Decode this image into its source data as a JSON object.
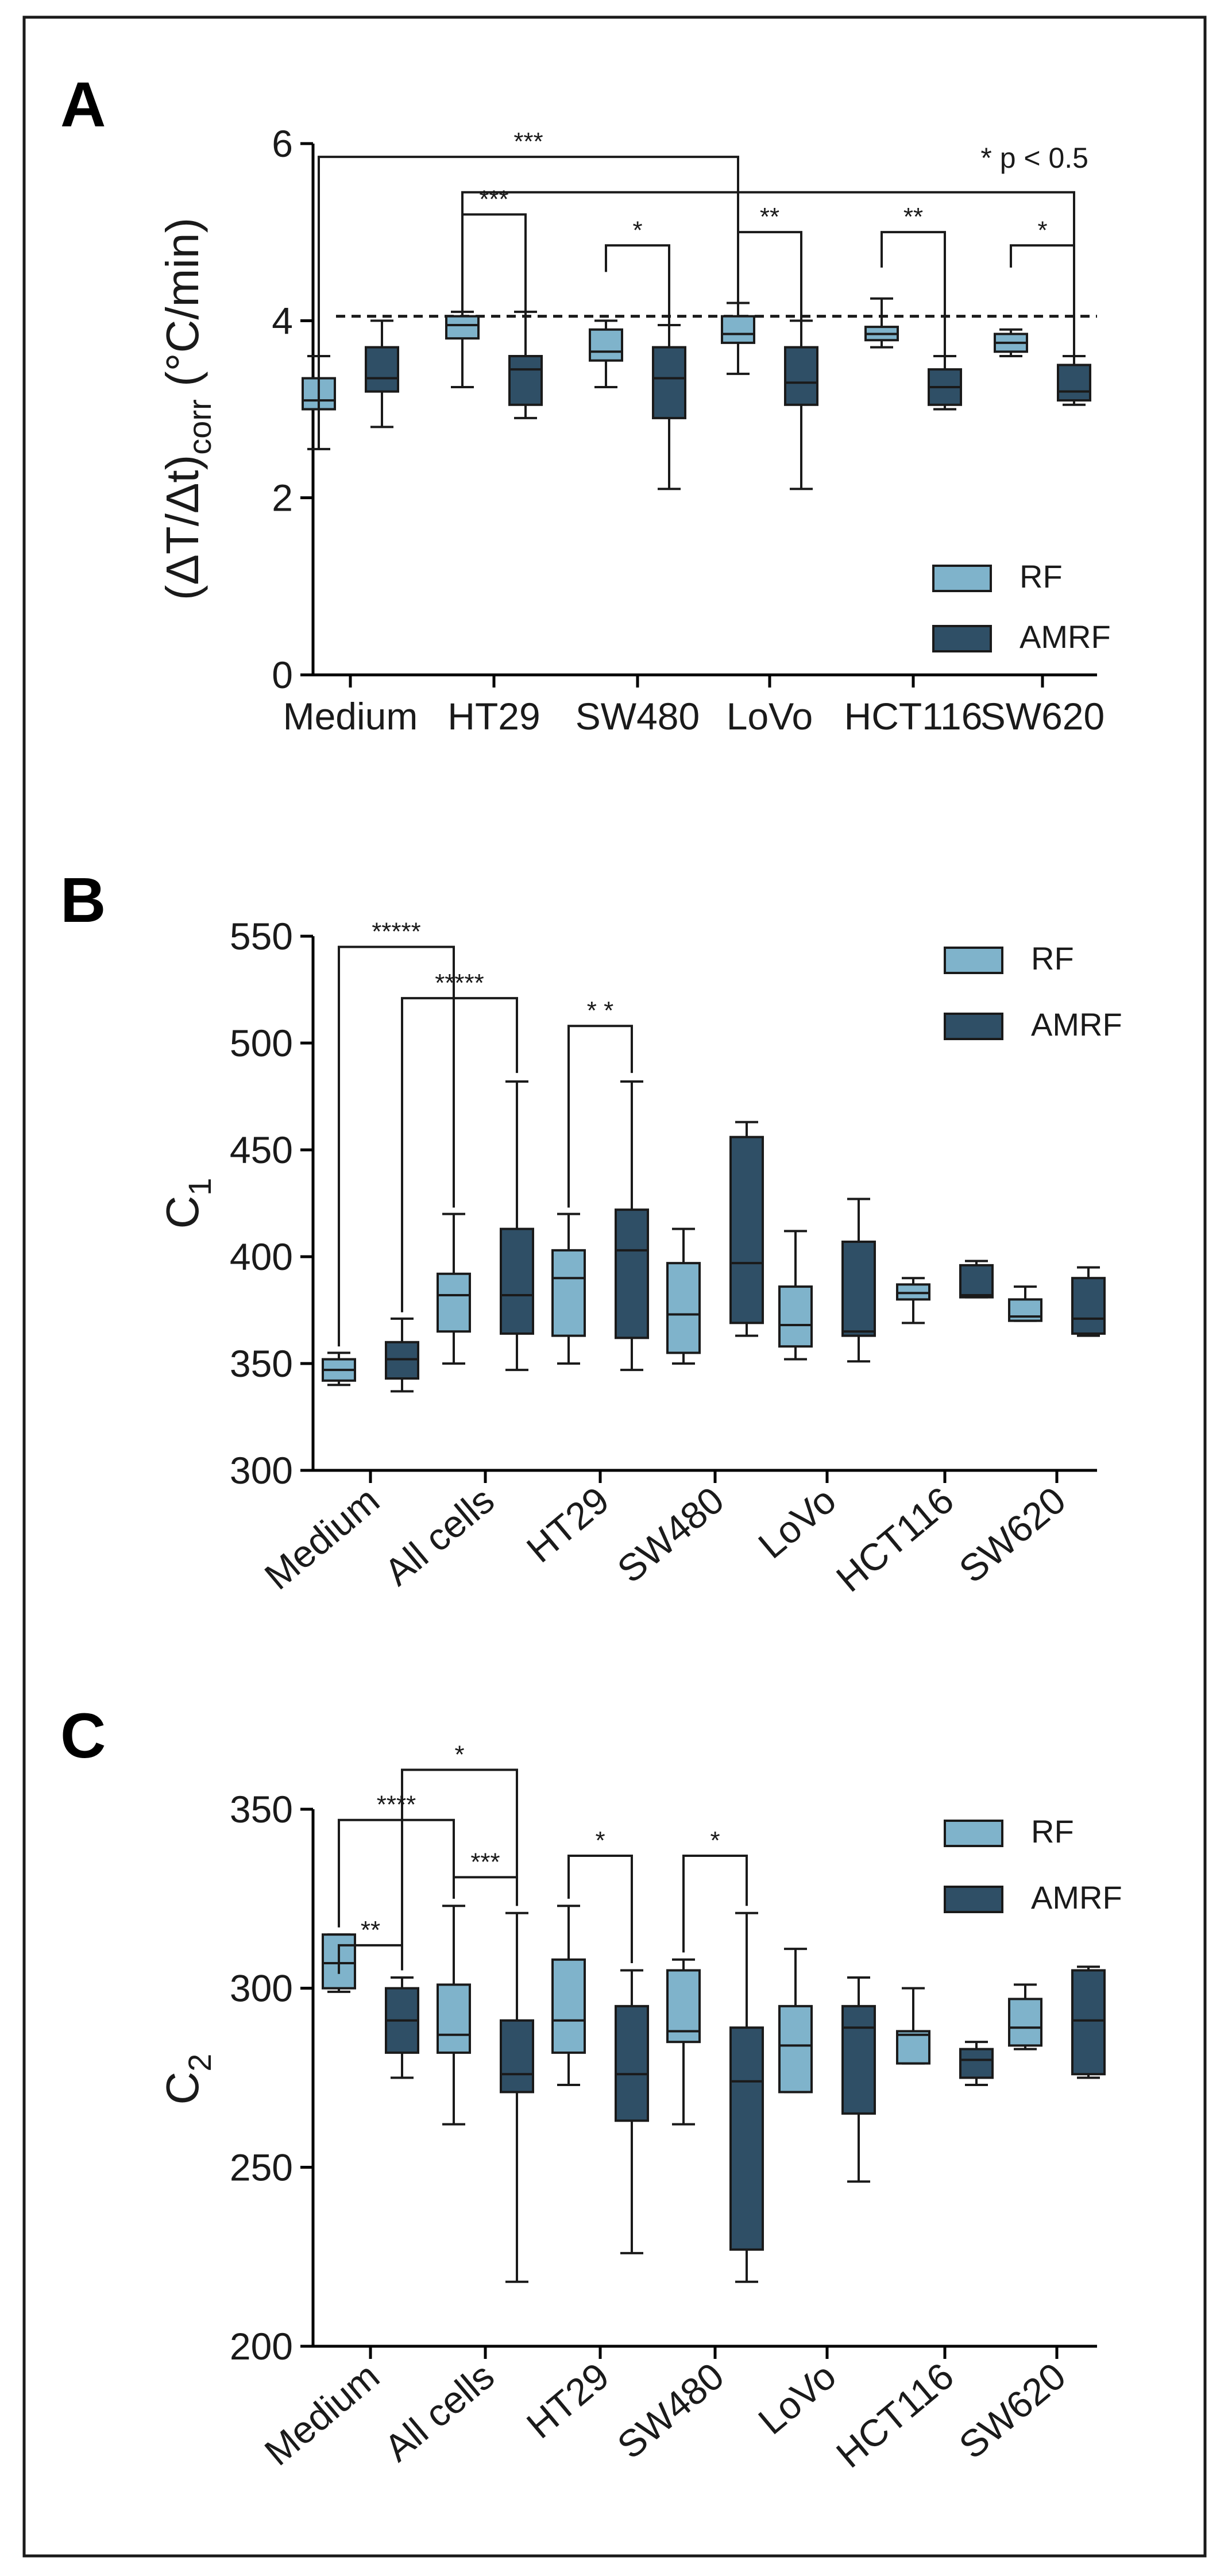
{
  "colors": {
    "RF": "#7fb3cb",
    "AMRF": "#2f4f66"
  },
  "chart_data": [
    {
      "panel": "A",
      "type": "box",
      "ylabel_main": "(ΔT/Δt)",
      "ylabel_sub": "corr",
      "ylabel_unit": " (°C/min)",
      "ylim": [
        0,
        6
      ],
      "yticks": [
        0,
        2,
        4,
        6
      ],
      "categories": [
        "Medium",
        "HT29",
        "SW480",
        "LoVo",
        "HCT116",
        "SW620"
      ],
      "legend": [
        "RF",
        "AMRF"
      ],
      "legend_position": "bottom-right",
      "reference_line": 4.05,
      "note": "* p < 0.5",
      "series": [
        {
          "name": "RF",
          "boxes": [
            {
              "min": 2.55,
              "q1": 3.0,
              "median": 3.1,
              "q3": 3.35,
              "max": 3.6
            },
            {
              "min": 3.25,
              "q1": 3.8,
              "median": 3.95,
              "q3": 4.05,
              "max": 4.1
            },
            {
              "min": 3.25,
              "q1": 3.55,
              "median": 3.65,
              "q3": 3.9,
              "max": 4.0
            },
            {
              "min": 3.4,
              "q1": 3.75,
              "median": 3.85,
              "q3": 4.05,
              "max": 4.2
            },
            {
              "min": 3.7,
              "q1": 3.78,
              "median": 3.85,
              "q3": 3.93,
              "max": 4.25
            },
            {
              "min": 3.6,
              "q1": 3.65,
              "median": 3.75,
              "q3": 3.85,
              "max": 3.9
            }
          ]
        },
        {
          "name": "AMRF",
          "boxes": [
            {
              "min": 2.8,
              "q1": 3.2,
              "median": 3.35,
              "q3": 3.7,
              "max": 4.0
            },
            {
              "min": 2.9,
              "q1": 3.05,
              "median": 3.45,
              "q3": 3.6,
              "max": 4.1
            },
            {
              "min": 2.1,
              "q1": 2.9,
              "median": 3.35,
              "q3": 3.7,
              "max": 3.95
            },
            {
              "min": 2.1,
              "q1": 3.05,
              "median": 3.3,
              "q3": 3.7,
              "max": 4.0
            },
            {
              "min": 3.0,
              "q1": 3.05,
              "median": 3.25,
              "q3": 3.45,
              "max": 3.6
            },
            {
              "min": 3.05,
              "q1": 3.1,
              "median": 3.2,
              "q3": 3.5,
              "max": 3.6
            }
          ]
        }
      ],
      "significance": [
        {
          "label": "***",
          "from": [
            0,
            0
          ],
          "to": [
            3,
            0
          ],
          "level": 5.85,
          "drop_from": 2.55,
          "drop_to": 4.05
        },
        {
          "label": "",
          "from": [
            1,
            0
          ],
          "to": [
            5,
            1
          ],
          "level": 5.45,
          "drop_from": 4.1,
          "drop_to": 3.9
        },
        {
          "label": "***",
          "from": [
            1,
            0
          ],
          "to": [
            1,
            1
          ],
          "level": 5.2,
          "drop_from": 4.6,
          "drop_to": 4.1
        },
        {
          "label": "*",
          "from": [
            2,
            0
          ],
          "to": [
            2,
            1
          ],
          "level": 4.85,
          "drop_from": 4.55,
          "drop_to": 3.9
        },
        {
          "label": "**",
          "from": [
            3,
            0
          ],
          "to": [
            3,
            1
          ],
          "level": 5.0,
          "drop_from": 4.6,
          "drop_to": 3.95
        },
        {
          "label": "**",
          "from": [
            4,
            0
          ],
          "to": [
            4,
            1
          ],
          "level": 5.0,
          "drop_from": 4.6,
          "drop_to": 3.6
        },
        {
          "label": "*",
          "from": [
            5,
            0
          ],
          "to": [
            5,
            1
          ],
          "level": 4.85,
          "drop_from": 4.6,
          "drop_to": 3.55
        }
      ]
    },
    {
      "panel": "B",
      "type": "box",
      "ylabel_main": "C",
      "ylabel_sub": "1",
      "ylabel_unit": "",
      "ylim": [
        300,
        550
      ],
      "yticks": [
        300,
        350,
        400,
        450,
        500,
        550
      ],
      "categories": [
        "Medium",
        "All cells",
        "HT29",
        "SW480",
        "LoVo",
        "HCT116",
        "SW620"
      ],
      "legend": [
        "RF",
        "AMRF"
      ],
      "legend_position": "top-right",
      "series": [
        {
          "name": "RF",
          "boxes": [
            {
              "min": 340,
              "q1": 342,
              "median": 347,
              "q3": 352,
              "max": 355
            },
            {
              "min": 350,
              "q1": 365,
              "median": 382,
              "q3": 392,
              "max": 420
            },
            {
              "min": 350,
              "q1": 363,
              "median": 390,
              "q3": 403,
              "max": 420
            },
            {
              "min": 350,
              "q1": 355,
              "median": 373,
              "q3": 397,
              "max": 413
            },
            {
              "min": 352,
              "q1": 358,
              "median": 368,
              "q3": 386,
              "max": 412
            },
            {
              "min": 369,
              "q1": 380,
              "median": 383,
              "q3": 387,
              "max": 390
            },
            {
              "min": 370,
              "q1": 370,
              "median": 372,
              "q3": 380,
              "max": 386
            }
          ]
        },
        {
          "name": "AMRF",
          "boxes": [
            {
              "min": 337,
              "q1": 343,
              "median": 352,
              "q3": 360,
              "max": 371
            },
            {
              "min": 347,
              "q1": 364,
              "median": 382,
              "q3": 413,
              "max": 482
            },
            {
              "min": 347,
              "q1": 362,
              "median": 403,
              "q3": 422,
              "max": 482
            },
            {
              "min": 363,
              "q1": 369,
              "median": 397,
              "q3": 456,
              "max": 463
            },
            {
              "min": 351,
              "q1": 363,
              "median": 365,
              "q3": 407,
              "max": 427
            },
            {
              "min": 381,
              "q1": 381,
              "median": 382,
              "q3": 396,
              "max": 398
            },
            {
              "min": 363,
              "q1": 364,
              "median": 371,
              "q3": 390,
              "max": 395
            }
          ]
        }
      ],
      "significance": [
        {
          "label": "*****",
          "from": [
            0,
            0
          ],
          "to": [
            1,
            0
          ],
          "level": 545,
          "drop_from": 358,
          "drop_to": 423
        },
        {
          "label": "*****",
          "from": [
            0,
            1
          ],
          "to": [
            1,
            1
          ],
          "level": 521,
          "drop_from": 374,
          "drop_to": 486
        },
        {
          "label": "* *",
          "from": [
            2,
            0
          ],
          "to": [
            2,
            1
          ],
          "level": 508,
          "drop_from": 423,
          "drop_to": 486
        }
      ]
    },
    {
      "panel": "C",
      "type": "box",
      "ylabel_main": "C",
      "ylabel_sub": "2",
      "ylabel_unit": "",
      "ylim": [
        200,
        350
      ],
      "yticks": [
        200,
        250,
        300,
        350
      ],
      "categories": [
        "Medium",
        "All cells",
        "HT29",
        "SW480",
        "LoVo",
        "HCT116",
        "SW620"
      ],
      "legend": [
        "RF",
        "AMRF"
      ],
      "legend_position": "top-right",
      "series": [
        {
          "name": "RF",
          "boxes": [
            {
              "min": 299,
              "q1": 300,
              "median": 307,
              "q3": 315,
              "max": 315
            },
            {
              "min": 262,
              "q1": 282,
              "median": 287,
              "q3": 301,
              "max": 323
            },
            {
              "min": 273,
              "q1": 282,
              "median": 291,
              "q3": 308,
              "max": 323
            },
            {
              "min": 262,
              "q1": 285,
              "median": 288,
              "q3": 305,
              "max": 308
            },
            {
              "min": 271,
              "q1": 271,
              "median": 284,
              "q3": 295,
              "max": 311
            },
            {
              "min": 279,
              "q1": 279,
              "median": 287,
              "q3": 288,
              "max": 300
            },
            {
              "min": 283,
              "q1": 284,
              "median": 289,
              "q3": 297,
              "max": 301
            }
          ]
        },
        {
          "name": "AMRF",
          "boxes": [
            {
              "min": 275,
              "q1": 282,
              "median": 291,
              "q3": 300,
              "max": 303
            },
            {
              "min": 218,
              "q1": 271,
              "median": 276,
              "q3": 291,
              "max": 321
            },
            {
              "min": 226,
              "q1": 263,
              "median": 276,
              "q3": 295,
              "max": 305
            },
            {
              "min": 218,
              "q1": 227,
              "median": 274,
              "q3": 289,
              "max": 321
            },
            {
              "min": 246,
              "q1": 265,
              "median": 289,
              "q3": 295,
              "max": 303
            },
            {
              "min": 273,
              "q1": 275,
              "median": 280,
              "q3": 283,
              "max": 285
            },
            {
              "min": 275,
              "q1": 276,
              "median": 291,
              "q3": 305,
              "max": 306
            }
          ]
        }
      ],
      "significance": [
        {
          "label": "*",
          "from": [
            0,
            1
          ],
          "to": [
            1,
            1
          ],
          "level": 361,
          "drop_from": 305,
          "drop_to": 323
        },
        {
          "label": "****",
          "from": [
            0,
            0
          ],
          "to": [
            1,
            0
          ],
          "level": 347,
          "drop_from": 317,
          "drop_to": 325
        },
        {
          "label": "**",
          "from": [
            0,
            0
          ],
          "to": [
            0,
            1
          ],
          "level": 312,
          "drop_from": 304,
          "drop_to": 305
        },
        {
          "label": "***",
          "from": [
            1,
            0
          ],
          "to": [
            1,
            1
          ],
          "level": 331,
          "drop_from": 329,
          "drop_to": 323
        },
        {
          "label": "*",
          "from": [
            2,
            0
          ],
          "to": [
            2,
            1
          ],
          "level": 337,
          "drop_from": 325,
          "drop_to": 307
        },
        {
          "label": "*",
          "from": [
            3,
            0
          ],
          "to": [
            3,
            1
          ],
          "level": 337,
          "drop_from": 310,
          "drop_to": 323
        }
      ]
    }
  ]
}
